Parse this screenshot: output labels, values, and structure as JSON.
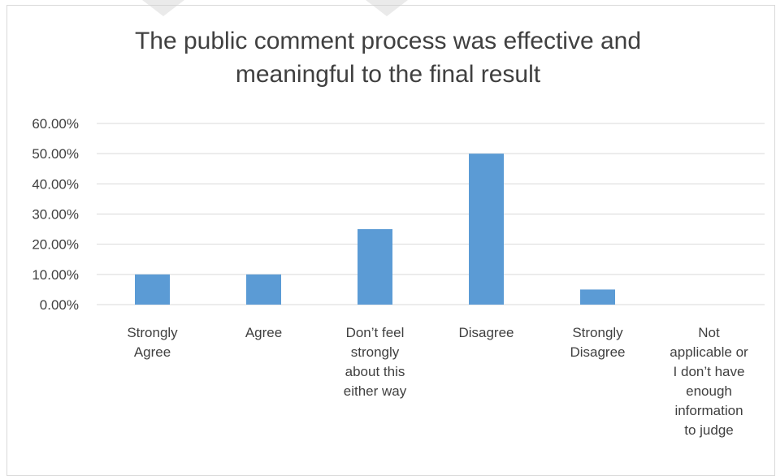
{
  "chart_data": {
    "type": "bar",
    "title": "The public comment process was effective and\nmeaningful to the final result",
    "categories": [
      [
        "Strongly",
        "Agree"
      ],
      [
        "Agree"
      ],
      [
        "Don’t feel",
        "strongly",
        "about this",
        "either way"
      ],
      [
        "Disagree"
      ],
      [
        "Strongly",
        "Disagree"
      ],
      [
        "Not",
        "applicable or",
        "I don’t have",
        "enough",
        "information",
        "to judge"
      ]
    ],
    "values": [
      0.1,
      0.1,
      0.25,
      0.5,
      0.05,
      0.0
    ],
    "ylim": [
      0,
      0.6
    ],
    "yticks": [
      "0.00%",
      "10.00%",
      "20.00%",
      "30.00%",
      "40.00%",
      "50.00%",
      "60.00%"
    ],
    "grid": true,
    "bar_color": "#5b9bd5",
    "grid_color": "#d9d9d9"
  }
}
